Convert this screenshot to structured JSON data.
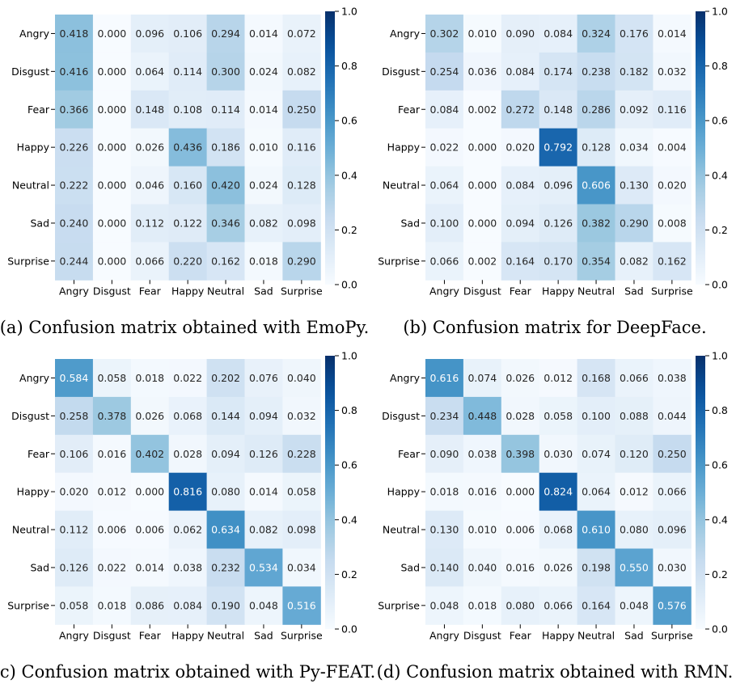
{
  "chart_data": [
    {
      "type": "heatmap",
      "title": "",
      "caption": "(a) Confusion matrix obtained with EmoPy.",
      "row_labels": [
        "Angry",
        "Disgust",
        "Fear",
        "Happy",
        "Neutral",
        "Sad",
        "Surprise"
      ],
      "col_labels": [
        "Angry",
        "Disgust",
        "Fear",
        "Happy",
        "Neutral",
        "Sad",
        "Surprise"
      ],
      "values": [
        [
          0.418,
          0.0,
          0.096,
          0.106,
          0.294,
          0.014,
          0.072
        ],
        [
          0.416,
          0.0,
          0.064,
          0.114,
          0.3,
          0.024,
          0.082
        ],
        [
          0.366,
          0.0,
          0.148,
          0.108,
          0.114,
          0.014,
          0.25
        ],
        [
          0.226,
          0.0,
          0.026,
          0.436,
          0.186,
          0.01,
          0.116
        ],
        [
          0.222,
          0.0,
          0.046,
          0.16,
          0.42,
          0.024,
          0.128
        ],
        [
          0.24,
          0.0,
          0.112,
          0.122,
          0.346,
          0.082,
          0.098
        ],
        [
          0.244,
          0.0,
          0.066,
          0.22,
          0.162,
          0.018,
          0.29
        ]
      ],
      "value_labels": [
        [
          "0.418",
          "0.000",
          "0.096",
          "0.106",
          "0.294",
          "0.014",
          "0.072"
        ],
        [
          "0.416",
          "0.000",
          "0.064",
          "0.114",
          "0.300",
          "0.024",
          "0.082"
        ],
        [
          "0.366",
          "0.000",
          "0.148",
          "0.108",
          "0.114",
          "0.014",
          "0.250"
        ],
        [
          "0.226",
          "0.000",
          "0.026",
          "0.436",
          "0.186",
          "0.010",
          "0.116"
        ],
        [
          "0.222",
          "0.000",
          "0.046",
          "0.160",
          "0.420",
          "0.024",
          "0.128"
        ],
        [
          "0.240",
          "0.000",
          "0.112",
          "0.122",
          "0.346",
          "0.082",
          "0.098"
        ],
        [
          "0.244",
          "0.000",
          "0.066",
          "0.220",
          "0.162",
          "0.018",
          "0.290"
        ]
      ],
      "colorbar": {
        "range": [
          0,
          1
        ],
        "ticks": [
          "0.0",
          "0.2",
          "0.4",
          "0.6",
          "0.8",
          "1.0"
        ]
      },
      "colormap": "Blues"
    },
    {
      "type": "heatmap",
      "title": "",
      "caption": "(b) Confusion matrix for DeepFace.",
      "row_labels": [
        "Angry",
        "Disgust",
        "Fear",
        "Happy",
        "Neutral",
        "Sad",
        "Surprise"
      ],
      "col_labels": [
        "Angry",
        "Disgust",
        "Fear",
        "Happy",
        "Neutral",
        "Sad",
        "Surprise"
      ],
      "values": [
        [
          0.302,
          0.01,
          0.09,
          0.084,
          0.324,
          0.176,
          0.014
        ],
        [
          0.254,
          0.036,
          0.084,
          0.174,
          0.238,
          0.182,
          0.032
        ],
        [
          0.084,
          0.002,
          0.272,
          0.148,
          0.286,
          0.092,
          0.116
        ],
        [
          0.022,
          0.0,
          0.02,
          0.792,
          0.128,
          0.034,
          0.004
        ],
        [
          0.064,
          0.0,
          0.084,
          0.096,
          0.606,
          0.13,
          0.02
        ],
        [
          0.1,
          0.0,
          0.094,
          0.126,
          0.382,
          0.29,
          0.008
        ],
        [
          0.066,
          0.002,
          0.164,
          0.17,
          0.354,
          0.082,
          0.162
        ]
      ],
      "value_labels": [
        [
          "0.302",
          "0.010",
          "0.090",
          "0.084",
          "0.324",
          "0.176",
          "0.014"
        ],
        [
          "0.254",
          "0.036",
          "0.084",
          "0.174",
          "0.238",
          "0.182",
          "0.032"
        ],
        [
          "0.084",
          "0.002",
          "0.272",
          "0.148",
          "0.286",
          "0.092",
          "0.116"
        ],
        [
          "0.022",
          "0.000",
          "0.020",
          "0.792",
          "0.128",
          "0.034",
          "0.004"
        ],
        [
          "0.064",
          "0.000",
          "0.084",
          "0.096",
          "0.606",
          "0.130",
          "0.020"
        ],
        [
          "0.100",
          "0.000",
          "0.094",
          "0.126",
          "0.382",
          "0.290",
          "0.008"
        ],
        [
          "0.066",
          "0.002",
          "0.164",
          "0.170",
          "0.354",
          "0.082",
          "0.162"
        ]
      ],
      "colorbar": {
        "range": [
          0,
          1
        ],
        "ticks": [
          "0.0",
          "0.2",
          "0.4",
          "0.6",
          "0.8",
          "1.0"
        ]
      },
      "colormap": "Blues"
    },
    {
      "type": "heatmap",
      "title": "",
      "caption": "(c) Confusion matrix obtained with Py-FEAT.",
      "row_labels": [
        "Angry",
        "Disgust",
        "Fear",
        "Happy",
        "Neutral",
        "Sad",
        "Surprise"
      ],
      "col_labels": [
        "Angry",
        "Disgust",
        "Fear",
        "Happy",
        "Neutral",
        "Sad",
        "Surprise"
      ],
      "values": [
        [
          0.584,
          0.058,
          0.018,
          0.022,
          0.202,
          0.076,
          0.04
        ],
        [
          0.258,
          0.378,
          0.026,
          0.068,
          0.144,
          0.094,
          0.032
        ],
        [
          0.106,
          0.016,
          0.402,
          0.028,
          0.094,
          0.126,
          0.228
        ],
        [
          0.02,
          0.012,
          0.0,
          0.816,
          0.08,
          0.014,
          0.058
        ],
        [
          0.112,
          0.006,
          0.006,
          0.062,
          0.634,
          0.082,
          0.098
        ],
        [
          0.126,
          0.022,
          0.014,
          0.038,
          0.232,
          0.534,
          0.034
        ],
        [
          0.058,
          0.018,
          0.086,
          0.084,
          0.19,
          0.048,
          0.516
        ]
      ],
      "value_labels": [
        [
          "0.584",
          "0.058",
          "0.018",
          "0.022",
          "0.202",
          "0.076",
          "0.040"
        ],
        [
          "0.258",
          "0.378",
          "0.026",
          "0.068",
          "0.144",
          "0.094",
          "0.032"
        ],
        [
          "0.106",
          "0.016",
          "0.402",
          "0.028",
          "0.094",
          "0.126",
          "0.228"
        ],
        [
          "0.020",
          "0.012",
          "0.000",
          "0.816",
          "0.080",
          "0.014",
          "0.058"
        ],
        [
          "0.112",
          "0.006",
          "0.006",
          "0.062",
          "0.634",
          "0.082",
          "0.098"
        ],
        [
          "0.126",
          "0.022",
          "0.014",
          "0.038",
          "0.232",
          "0.534",
          "0.034"
        ],
        [
          "0.058",
          "0.018",
          "0.086",
          "0.084",
          "0.190",
          "0.048",
          "0.516"
        ]
      ],
      "colorbar": {
        "range": [
          0,
          1
        ],
        "ticks": [
          "0.0",
          "0.2",
          "0.4",
          "0.6",
          "0.8",
          "1.0"
        ]
      },
      "colormap": "Blues"
    },
    {
      "type": "heatmap",
      "title": "",
      "caption": "(d) Confusion matrix obtained with RMN.",
      "row_labels": [
        "Angry",
        "Disgust",
        "Fear",
        "Happy",
        "Neutral",
        "Sad",
        "Surprise"
      ],
      "col_labels": [
        "Angry",
        "Disgust",
        "Fear",
        "Happy",
        "Neutral",
        "Sad",
        "Surprise"
      ],
      "values": [
        [
          0.616,
          0.074,
          0.026,
          0.012,
          0.168,
          0.066,
          0.038
        ],
        [
          0.234,
          0.448,
          0.028,
          0.058,
          0.1,
          0.088,
          0.044
        ],
        [
          0.09,
          0.038,
          0.398,
          0.03,
          0.074,
          0.12,
          0.25
        ],
        [
          0.018,
          0.016,
          0.0,
          0.824,
          0.064,
          0.012,
          0.066
        ],
        [
          0.13,
          0.01,
          0.006,
          0.068,
          0.61,
          0.08,
          0.096
        ],
        [
          0.14,
          0.04,
          0.016,
          0.026,
          0.198,
          0.55,
          0.03
        ],
        [
          0.048,
          0.018,
          0.08,
          0.066,
          0.164,
          0.048,
          0.576
        ]
      ],
      "value_labels": [
        [
          "0.616",
          "0.074",
          "0.026",
          "0.012",
          "0.168",
          "0.066",
          "0.038"
        ],
        [
          "0.234",
          "0.448",
          "0.028",
          "0.058",
          "0.100",
          "0.088",
          "0.044"
        ],
        [
          "0.090",
          "0.038",
          "0.398",
          "0.030",
          "0.074",
          "0.120",
          "0.250"
        ],
        [
          "0.018",
          "0.016",
          "0.000",
          "0.824",
          "0.064",
          "0.012",
          "0.066"
        ],
        [
          "0.130",
          "0.010",
          "0.006",
          "0.068",
          "0.610",
          "0.080",
          "0.096"
        ],
        [
          "0.140",
          "0.040",
          "0.016",
          "0.026",
          "0.198",
          "0.550",
          "0.030"
        ],
        [
          "0.048",
          "0.018",
          "0.080",
          "0.066",
          "0.164",
          "0.048",
          "0.576"
        ]
      ],
      "colorbar": {
        "range": [
          0,
          1
        ],
        "ticks": [
          "0.0",
          "0.2",
          "0.4",
          "0.6",
          "0.8",
          "1.0"
        ]
      },
      "colormap": "Blues"
    }
  ]
}
